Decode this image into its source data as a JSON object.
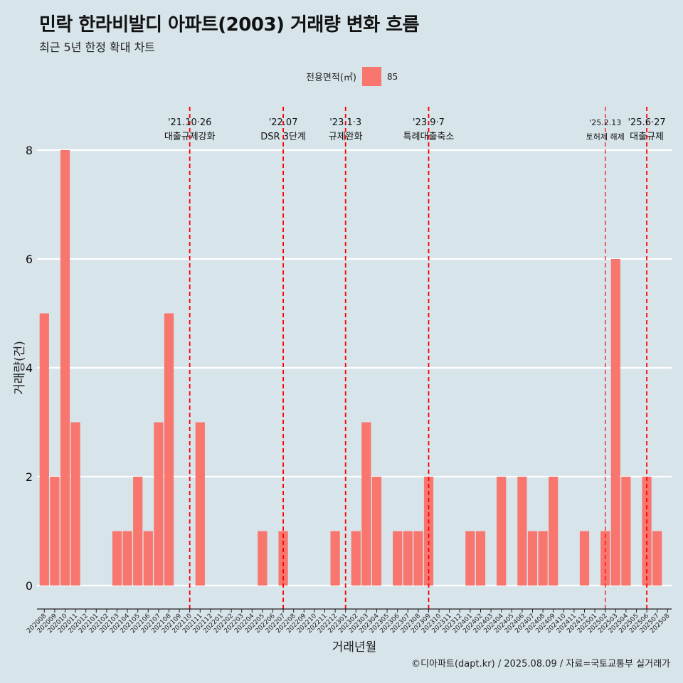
{
  "title": "민락 한라비발디 아파트(2003) 거래량 변화 흐름",
  "subtitle": "최근 5년 한정 확대 차트",
  "caption": "©디아파트(dapt.kr) / 2025.08.09 / 자료=국토교통부 실거래가",
  "legend": {
    "title": "전용면적(㎡)",
    "label": "85",
    "color": "#f8766d"
  },
  "chart_data": {
    "type": "bar",
    "xlabel": "거래년월",
    "ylabel": "거래량(건)",
    "ylim": [
      0,
      8
    ],
    "yticks": [
      0,
      2,
      4,
      6,
      8
    ],
    "grid": true,
    "legend_position": "top",
    "series": [
      {
        "name": "85",
        "color": "#f8766d"
      }
    ],
    "categories": [
      "202008",
      "202009",
      "202010",
      "202011",
      "202012",
      "202101",
      "202102",
      "202103",
      "202104",
      "202105",
      "202106",
      "202107",
      "202108",
      "202109",
      "202110",
      "202111",
      "202112",
      "202201",
      "202202",
      "202203",
      "202204",
      "202205",
      "202206",
      "202207",
      "202208",
      "202209",
      "202210",
      "202211",
      "202212",
      "202301",
      "202302",
      "202303",
      "202304",
      "202305",
      "202306",
      "202307",
      "202308",
      "202309",
      "202310",
      "202311",
      "202312",
      "202401",
      "202402",
      "202403",
      "202404",
      "202405",
      "202406",
      "202407",
      "202408",
      "202409",
      "202410",
      "202411",
      "202412",
      "202501",
      "202502",
      "202503",
      "202504",
      "202505",
      "202506",
      "202507",
      "202508"
    ],
    "values": [
      5,
      2,
      8,
      3,
      0,
      0,
      0,
      1,
      1,
      2,
      1,
      3,
      5,
      0,
      0,
      3,
      0,
      0,
      0,
      0,
      0,
      1,
      0,
      1,
      0,
      0,
      0,
      0,
      1,
      0,
      1,
      3,
      2,
      0,
      1,
      1,
      1,
      2,
      0,
      0,
      0,
      1,
      1,
      0,
      2,
      0,
      2,
      1,
      1,
      2,
      0,
      0,
      1,
      0,
      1,
      6,
      2,
      0,
      2,
      1,
      0
    ],
    "annotations": [
      {
        "category": "202110",
        "date": "'21.10·26",
        "label": "대출규제강화"
      },
      {
        "category": "202207",
        "date": "'22.07",
        "label": "DSR 3단계"
      },
      {
        "category": "202301",
        "date": "'23.1·3",
        "label": "규제완화"
      },
      {
        "category": "202309",
        "date": "'23.9·7",
        "label": "특례대출축소"
      },
      {
        "category": "202502",
        "date": "'25.2.13",
        "label": "토허제 해제",
        "small": true
      },
      {
        "category": "202506",
        "date": "'25.6·27",
        "label": "대출규제"
      }
    ]
  }
}
